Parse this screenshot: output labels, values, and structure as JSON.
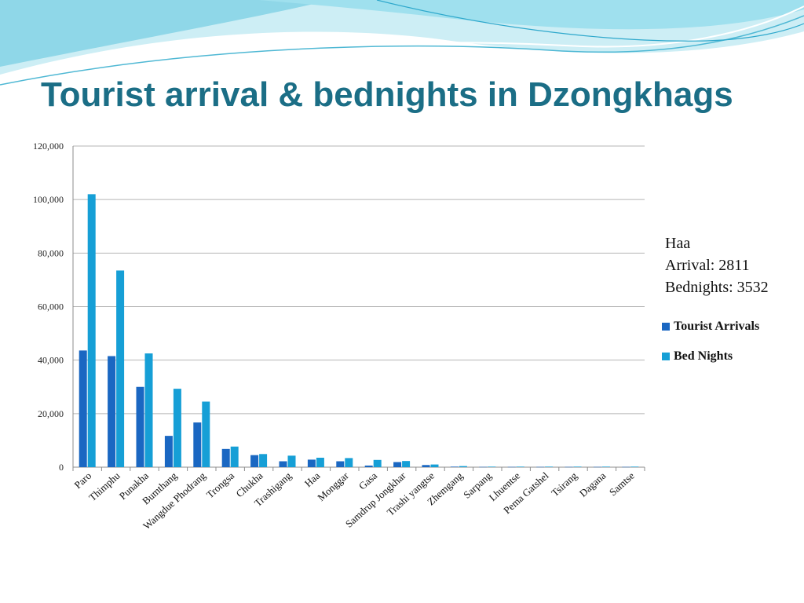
{
  "slide": {
    "title": "Tourist arrival & bednights in Dzongkhags"
  },
  "annotation": {
    "name": "Haa",
    "arrival": "Arrival: 2811",
    "bednights": "Bednights: 3532"
  },
  "colors": {
    "title": "#1b6e86",
    "tourist_arrivals": "#1a67c2",
    "bed_nights": "#169fd6",
    "gridline": "#b5b5b5",
    "axis": "#8c8c8c",
    "wave_light": "#bfe9f2",
    "wave_mid": "#7fd3e6",
    "wave_dark": "#3fb6d6"
  },
  "chart_data": {
    "type": "bar",
    "title": "",
    "xlabel": "",
    "ylabel": "",
    "ylim": [
      0,
      120000
    ],
    "yticks": [
      0,
      20000,
      40000,
      60000,
      80000,
      100000,
      120000
    ],
    "ytick_labels": [
      "0",
      "20,000",
      "40,000",
      "60,000",
      "80,000",
      "100,000",
      "120,000"
    ],
    "grid": true,
    "legend_position": "right",
    "categories": [
      "Paro",
      "Thimphu",
      "Punakha",
      "Bumthang",
      "Wangdue Phodrang",
      "Trongsa",
      "Chukha",
      "Trashigang",
      "Haa",
      "Monggar",
      "Gasa",
      "Samdrup Jongkhar",
      "Trashi yangtse",
      "Zhemgang",
      "Sarpang",
      "Lhuentse",
      "Pema Gatshel",
      "Tsirang",
      "Dagana",
      "Samtse"
    ],
    "series": [
      {
        "name": "Tourist Arrivals",
        "values": [
          43600,
          41500,
          30000,
          11700,
          16700,
          6800,
          4500,
          2200,
          2811,
          2200,
          600,
          1900,
          800,
          200,
          100,
          100,
          100,
          100,
          100,
          100
        ]
      },
      {
        "name": "Bed Nights",
        "values": [
          102000,
          73500,
          42500,
          29300,
          24500,
          7700,
          4900,
          4300,
          3532,
          3400,
          2700,
          2300,
          1000,
          400,
          200,
          200,
          200,
          200,
          200,
          200
        ]
      }
    ]
  }
}
